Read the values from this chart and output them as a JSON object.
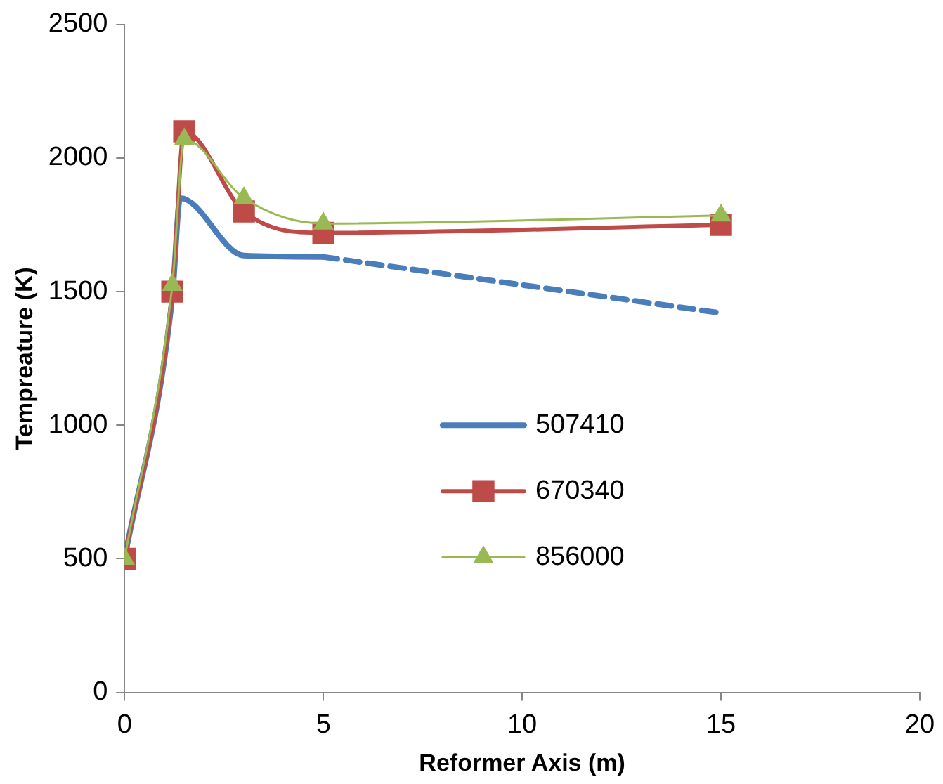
{
  "chart_data": {
    "type": "line",
    "xlabel": "Reformer Axis (m)",
    "ylabel": "Tempreature (K)",
    "xlim": [
      0,
      20
    ],
    "xticks": [
      0,
      5,
      10,
      15,
      20
    ],
    "ylim": [
      0,
      2500
    ],
    "yticks": [
      0,
      500,
      1000,
      1500,
      2000,
      2500
    ],
    "grid": false,
    "legend": "right",
    "series": [
      {
        "name": "507410",
        "color": "#4a7ebb",
        "marker": "none",
        "line_style": "solid",
        "x": [
          0,
          1.2,
          1.4,
          3,
          5
        ],
        "values": [
          500,
          1480,
          1850,
          1635,
          1630
        ]
      },
      {
        "color": "#4a7ebb",
        "marker": "none",
        "line_style": "dashed",
        "x": [
          5,
          15
        ],
        "values": [
          1630,
          1420
        ]
      },
      {
        "name": "670340",
        "color": "#be4b48",
        "marker": "square",
        "line_style": "solid",
        "x": [
          0,
          1.2,
          1.5,
          3,
          5,
          15
        ],
        "values": [
          500,
          1500,
          2100,
          1800,
          1720,
          1750
        ]
      },
      {
        "name": "856000",
        "color": "#98b954",
        "marker": "triangle",
        "line_style": "solid",
        "x": [
          0,
          1.2,
          1.5,
          3,
          5,
          15
        ],
        "values": [
          500,
          1525,
          2070,
          1850,
          1755,
          1785
        ]
      }
    ]
  }
}
